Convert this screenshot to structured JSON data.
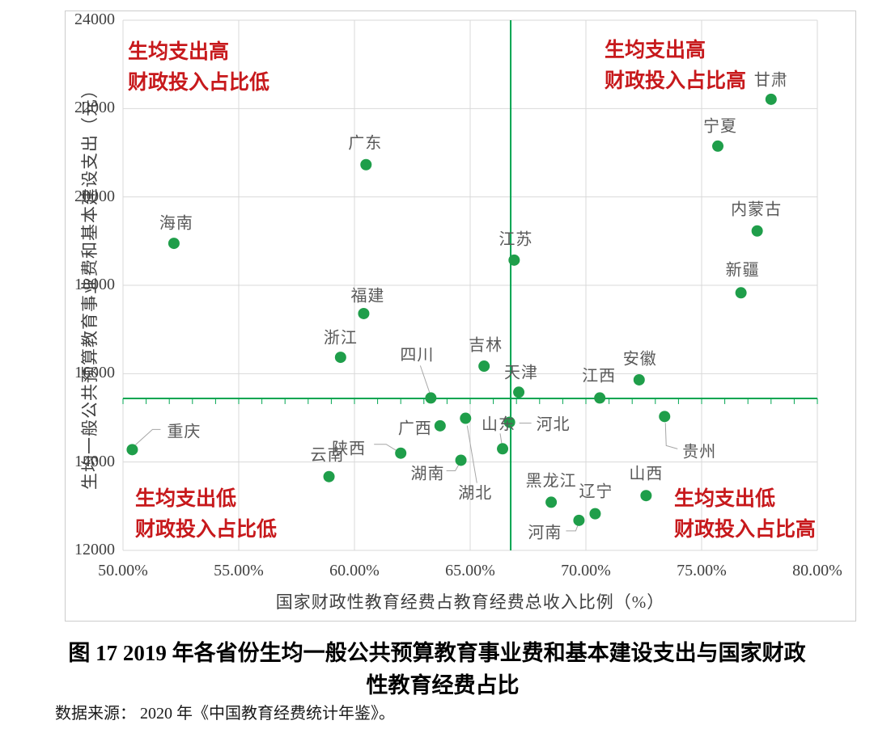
{
  "figure": {
    "caption_line1": "图 17  2019 年各省份生均一般公共预算教育事业费和基本建设支出与国家财政",
    "caption_line2": "性教育经费占比",
    "source": "数据来源： 2020 年《中国教育经费统计年鉴》。"
  },
  "quadrants": {
    "top_left": {
      "line1": "生均支出高",
      "line2": "财政投入占比低"
    },
    "top_right": {
      "line1": "生均支出高",
      "line2": "财政投入占比高"
    },
    "bottom_left": {
      "line1": "生均支出低",
      "line2": "财政投入占比低"
    },
    "bottom_right": {
      "line1": "生均支出低",
      "line2": "财政投入占比高"
    }
  },
  "colors": {
    "dot": "#1f9e4a",
    "mean_line": "#00a551",
    "grid": "#d9d9d9",
    "point_label": "#595959",
    "tick_label": "#3f3f3f",
    "quadrant_text": "#c7191c",
    "leader": "#a6a6a6",
    "figure_border": "#cccccc"
  },
  "chart_data": {
    "type": "scatter",
    "title": "图 17 2019 年各省份生均一般公共预算教育事业费和基本建设支出与国家财政性教育经费占比",
    "xlabel": "国家财政性教育经费占教育经费总收入比例（%）",
    "ylabel": "生均一般公共预算教育事业费和基本建设支出（元）",
    "xlim": [
      50,
      80
    ],
    "ylim": [
      12000,
      24000
    ],
    "grid": true,
    "legend": "none",
    "mean_x": 66.75,
    "mean_y": 15440,
    "minor_tick_step_x": 1,
    "x_ticks": [
      {
        "value": 50,
        "label": "50.00%"
      },
      {
        "value": 55,
        "label": "55.00%"
      },
      {
        "value": 60,
        "label": "60.00%"
      },
      {
        "value": 65,
        "label": "65.00%"
      },
      {
        "value": 70,
        "label": "70.00%"
      },
      {
        "value": 75,
        "label": "75.00%"
      },
      {
        "value": 80,
        "label": "80.00%"
      }
    ],
    "y_ticks": [
      {
        "value": 24000,
        "label": "24000"
      },
      {
        "value": 22000,
        "label": "22000"
      },
      {
        "value": 20000,
        "label": "20000"
      },
      {
        "value": 18000,
        "label": "18000"
      },
      {
        "value": 16000,
        "label": "16000"
      },
      {
        "value": 14000,
        "label": "14000"
      },
      {
        "value": 12000,
        "label": "12000"
      }
    ],
    "points": [
      {
        "name": "重庆",
        "x": 50.4,
        "y": 14280,
        "label_offset": [
          64,
          -24
        ],
        "leader": [
          [
            4,
            -6
          ],
          [
            25,
            -25
          ],
          [
            35,
            -25
          ]
        ]
      },
      {
        "name": "海南",
        "x": 52.2,
        "y": 18950,
        "label_offset": [
          3,
          -27
        ],
        "leader": null
      },
      {
        "name": "云南",
        "x": 58.9,
        "y": 13670,
        "label_offset": [
          -2,
          -29
        ],
        "leader": null
      },
      {
        "name": "浙江",
        "x": 59.4,
        "y": 16370,
        "label_offset": [
          0,
          -26
        ],
        "leader": null
      },
      {
        "name": "福建",
        "x": 60.4,
        "y": 17360,
        "label_offset": [
          5,
          -24
        ],
        "leader": null
      },
      {
        "name": "广东",
        "x": 60.5,
        "y": 20730,
        "label_offset": [
          -1,
          -29
        ],
        "leader": null
      },
      {
        "name": "陕西",
        "x": 62.0,
        "y": 14200,
        "label_offset": [
          -64,
          -8
        ],
        "leader": [
          [
            -33,
            -11
          ],
          [
            -18,
            -11
          ],
          [
            -5,
            -3
          ]
        ]
      },
      {
        "name": "四川",
        "x": 63.3,
        "y": 15450,
        "label_offset": [
          -17,
          -55
        ],
        "leader": [
          [
            -13,
            -40
          ],
          [
            -1,
            -5
          ]
        ]
      },
      {
        "name": "广西",
        "x": 63.7,
        "y": 14820,
        "label_offset": [
          -31,
          1
        ],
        "leader": null
      },
      {
        "name": "湖南",
        "x": 64.6,
        "y": 14040,
        "label_offset": [
          -41,
          15
        ],
        "leader": [
          [
            -18,
            13
          ],
          [
            -7,
            13
          ],
          [
            -3,
            6
          ]
        ]
      },
      {
        "name": "湖北",
        "x": 64.8,
        "y": 14990,
        "label_offset": [
          12,
          90
        ],
        "leader": [
          [
            2,
            9
          ],
          [
            14,
            80
          ]
        ]
      },
      {
        "name": "吉林",
        "x": 65.6,
        "y": 16170,
        "label_offset": [
          2,
          -28
        ],
        "leader": null
      },
      {
        "name": "山东",
        "x": 66.4,
        "y": 14300,
        "label_offset": [
          -5,
          -32
        ],
        "leader": [
          [
            -3,
            -19
          ],
          [
            -1,
            -6
          ]
        ]
      },
      {
        "name": "河北",
        "x": 66.7,
        "y": 14900,
        "label_offset": [
          54,
          1
        ],
        "leader": [
          [
            12,
            1
          ],
          [
            27,
            1
          ]
        ]
      },
      {
        "name": "江苏",
        "x": 66.9,
        "y": 18570,
        "label_offset": [
          2,
          -28
        ],
        "leader": null
      },
      {
        "name": "天津",
        "x": 67.1,
        "y": 15580,
        "label_offset": [
          3,
          -26
        ],
        "leader": null
      },
      {
        "name": "黑龙江",
        "x": 68.5,
        "y": 13090,
        "label_offset": [
          0,
          -28
        ],
        "leader": null
      },
      {
        "name": "河南",
        "x": 69.7,
        "y": 12680,
        "label_offset": [
          -42,
          13
        ],
        "leader": [
          [
            -16,
            13
          ],
          [
            -4,
            13
          ],
          [
            -1,
            5
          ]
        ]
      },
      {
        "name": "辽宁",
        "x": 70.4,
        "y": 12830,
        "label_offset": [
          1,
          -30
        ],
        "leader": null
      },
      {
        "name": "江西",
        "x": 70.6,
        "y": 15450,
        "label_offset": [
          -1,
          -29
        ],
        "leader": null
      },
      {
        "name": "安徽",
        "x": 72.3,
        "y": 15860,
        "label_offset": [
          1,
          -28
        ],
        "leader": null
      },
      {
        "name": "山西",
        "x": 72.6,
        "y": 13240,
        "label_offset": [
          0,
          -29
        ],
        "leader": null
      },
      {
        "name": "贵州",
        "x": 73.4,
        "y": 15030,
        "label_offset": [
          43,
          42
        ],
        "leader": [
          [
            1,
            8
          ],
          [
            2,
            36
          ],
          [
            16,
            40
          ]
        ]
      },
      {
        "name": "宁夏",
        "x": 75.7,
        "y": 21150,
        "label_offset": [
          3,
          -27
        ],
        "leader": null
      },
      {
        "name": "新疆",
        "x": 76.7,
        "y": 17830,
        "label_offset": [
          2,
          -30
        ],
        "leader": null
      },
      {
        "name": "内蒙古",
        "x": 77.4,
        "y": 19230,
        "label_offset": [
          -1,
          -29
        ],
        "leader": null
      },
      {
        "name": "甘肃",
        "x": 78.0,
        "y": 22210,
        "label_offset": [
          0,
          -26
        ],
        "leader": null
      }
    ]
  }
}
